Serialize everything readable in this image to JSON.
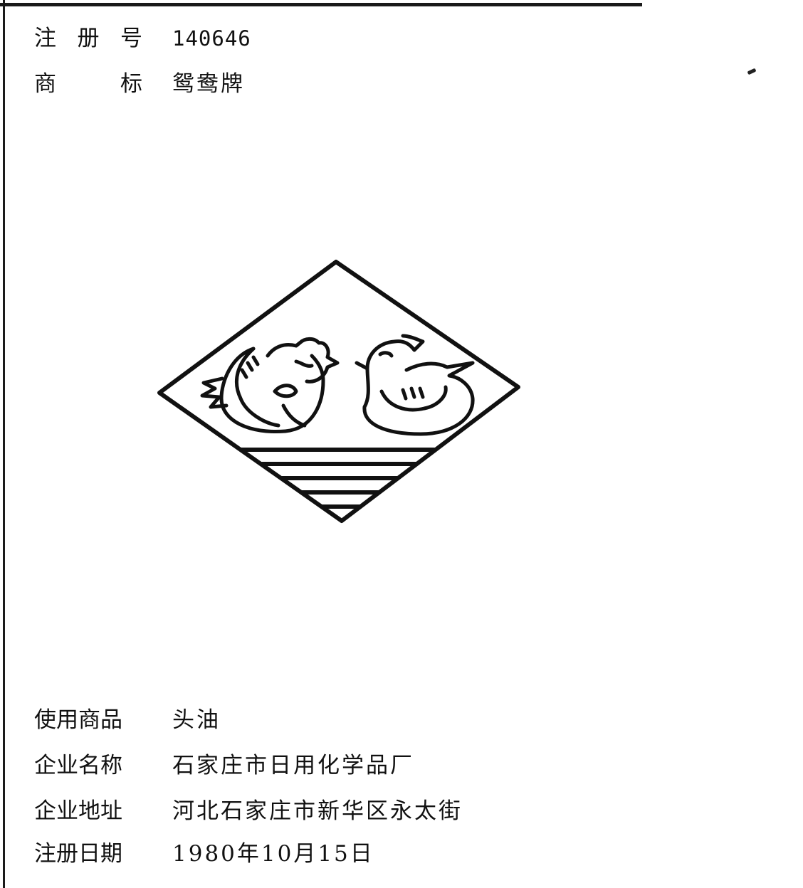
{
  "registration": {
    "label_chars": [
      "注",
      "册",
      "号"
    ],
    "number": "140646"
  },
  "trademark": {
    "label_chars": [
      "商",
      "标"
    ],
    "name": "鸳鸯牌"
  },
  "logo": {
    "icon": "mandarin-duck-pair-icon"
  },
  "goods": {
    "label": "使用商品",
    "value": "头油"
  },
  "company": {
    "label": "企业名称",
    "value": "石家庄市日用化学品厂"
  },
  "address": {
    "label": "企业地址",
    "value": "河北石家庄市新华区永太街"
  },
  "date": {
    "label": "注册日期",
    "value": "1980年10月15日"
  }
}
